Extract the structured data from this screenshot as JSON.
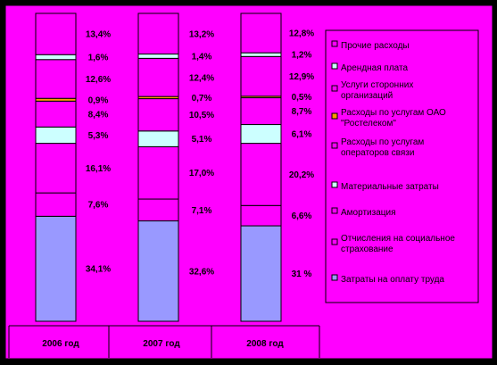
{
  "colors": {
    "background": "#000000",
    "plot_area": "#ff00ff",
    "legend_bg": "#ff00ff",
    "border": "#000000"
  },
  "chart_data": {
    "type": "bar",
    "stacked": true,
    "percent": true,
    "title": "",
    "xlabel": "",
    "ylabel": "",
    "categories": [
      "2006 год",
      "2007 год",
      "2008 год"
    ],
    "series": [
      {
        "name": "Затраты на оплату труда",
        "color": "#9999ff",
        "values": [
          34.1,
          32.6,
          31
        ],
        "labels": [
          "34,1%",
          "32,6%",
          "31 %"
        ]
      },
      {
        "name": "Отчисления на социальное страхование",
        "color": "#ff00ff",
        "values": [
          7.6,
          7.1,
          6.6
        ],
        "labels": [
          "7,6%",
          "7,1%",
          "6,6%"
        ]
      },
      {
        "name": "Амортизация",
        "color": "#ff00ff",
        "values": [
          16.1,
          17.0,
          20.2
        ],
        "labels": [
          "16,1%",
          "17,0%",
          "20,2%"
        ]
      },
      {
        "name": "Материальные затраты",
        "color": "#ccffff",
        "values": [
          5.3,
          5.1,
          6.1
        ],
        "labels": [
          "5,3%",
          "5,1%",
          "6,1%"
        ]
      },
      {
        "name": "Расходы по услугам операторов связи",
        "color": "#ff00ff",
        "values": [
          8.4,
          10.5,
          8.7
        ],
        "labels": [
          "8,4%",
          "10,5%",
          "8,7%"
        ]
      },
      {
        "name": "Расходы по услугам ОАО \"Ростелеком\"",
        "color": "#ff9900",
        "values": [
          0.9,
          0.7,
          0.5
        ],
        "labels": [
          "0,9%",
          "0,7%",
          "0,5%"
        ]
      },
      {
        "name": "Услуги сторонних организаций",
        "color": "#ff00ff",
        "values": [
          12.6,
          12.4,
          12.9
        ],
        "labels": [
          "12,6%",
          "12,4%",
          "12,9%"
        ]
      },
      {
        "name": "Арендная плата",
        "color": "#ccffff",
        "values": [
          1.6,
          1.4,
          1.2
        ],
        "labels": [
          "1,6%",
          "1,4%",
          "1,2%"
        ]
      },
      {
        "name": "Прочие расходы",
        "color": "#ff00ff",
        "values": [
          13.4,
          13.2,
          12.8
        ],
        "labels": [
          "13,4%",
          "13,2%",
          "12,8%"
        ]
      }
    ],
    "legend_order": [
      "Прочие расходы",
      "Арендная плата",
      "Услуги сторонних организаций",
      "Расходы по услугам ОАО \"Ростелеком\"",
      "Расходы по услугам операторов связи",
      "Материальные затраты",
      "Амортизация",
      "Отчисления на социальное страхование",
      "Затраты на оплату труда"
    ],
    "legend_display": [
      [
        "Прочие расходы"
      ],
      [
        "Арендная плата"
      ],
      [
        "Услуги сторонних",
        "организаций"
      ],
      [
        "Расходы по услугам ОАО",
        "\"Ростелеком\""
      ],
      [
        "Расходы по услугам",
        "операторов связи"
      ],
      [
        "Материальные затраты"
      ],
      [
        "Амортизация"
      ],
      [
        "Отчисления на социальное",
        "страхование"
      ],
      [
        "Затраты на оплату труда"
      ]
    ],
    "legend_position": "right",
    "grid": false
  }
}
